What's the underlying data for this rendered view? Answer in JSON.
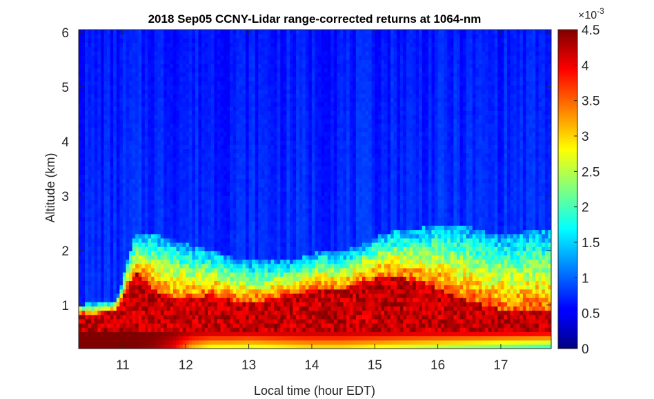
{
  "chart_data": {
    "type": "heatmap",
    "title": "2018 Sep05 CCNY-Lidar range-corrected returns at 1064-nm",
    "xlabel": "Local time (hour EDT)",
    "ylabel": "Altitude (km)",
    "xlim": [
      10.3,
      17.8
    ],
    "ylim": [
      0.2,
      6.05
    ],
    "xticks": [
      "11",
      "12",
      "13",
      "14",
      "15",
      "16",
      "17"
    ],
    "xtick_values": [
      11,
      12,
      13,
      14,
      15,
      16,
      17
    ],
    "yticks": [
      "1",
      "2",
      "3",
      "4",
      "5",
      "6"
    ],
    "ytick_values": [
      1,
      2,
      3,
      4,
      5,
      6
    ],
    "colormap": "jet",
    "clim": [
      0,
      4.5
    ],
    "colorbar_ticks": [
      "0",
      "0.5",
      "1",
      "1.5",
      "2",
      "2.5",
      "3",
      "3.5",
      "4",
      "4.5"
    ],
    "colorbar_tick_values": [
      0,
      0.5,
      1,
      1.5,
      2,
      2.5,
      3,
      3.5,
      4,
      4.5
    ],
    "colorbar_exponent": "×10",
    "colorbar_exponent_power": "-3",
    "grid": false,
    "boundary_layer_profile": {
      "time": [
        10.3,
        10.6,
        10.9,
        11.2,
        11.5,
        11.8,
        12.1,
        12.4,
        12.7,
        13.0,
        13.3,
        13.6,
        13.9,
        14.2,
        14.5,
        14.8,
        15.1,
        15.4,
        15.7,
        16.0,
        16.3,
        16.6,
        16.9,
        17.2,
        17.5,
        17.8
      ],
      "saturated_top_km": [
        0.85,
        0.85,
        0.9,
        1.6,
        1.3,
        1.1,
        1.1,
        1.2,
        1.1,
        1.05,
        1.1,
        1.2,
        1.25,
        1.3,
        1.25,
        1.45,
        1.5,
        1.5,
        1.45,
        1.3,
        1.15,
        1.05,
        0.95,
        0.9,
        0.9,
        0.9
      ],
      "aerosol_top_km": [
        1.0,
        1.05,
        1.1,
        2.3,
        2.3,
        2.2,
        2.1,
        2.0,
        1.9,
        1.8,
        1.8,
        1.8,
        1.9,
        2.0,
        2.0,
        2.1,
        2.3,
        2.4,
        2.4,
        2.5,
        2.5,
        2.4,
        2.3,
        2.3,
        2.4,
        2.4
      ],
      "near_ground_value_x1e-3": [
        4.5,
        4.5,
        4.5,
        4.5,
        4.4,
        4.0,
        3.0,
        2.6,
        2.6,
        2.5,
        2.6,
        2.7,
        2.8,
        2.8,
        2.8,
        2.7,
        2.6,
        2.5,
        2.4,
        2.3,
        2.2,
        2.1,
        2.0,
        1.9,
        1.8,
        1.7
      ]
    }
  }
}
